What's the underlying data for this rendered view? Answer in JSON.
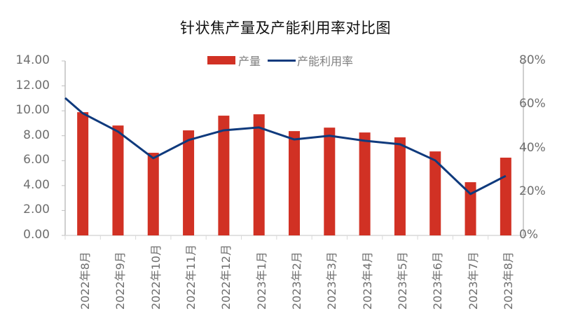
{
  "chart_data": {
    "type": "bar+line",
    "title": "针状焦产量及产能利用率对比图",
    "categories": [
      "2022年8月",
      "2022年9月",
      "2022年10月",
      "2022年11月",
      "2022年12月",
      "2023年1月",
      "2023年2月",
      "2023年3月",
      "2023年4月",
      "2023年5月",
      "2023年6月",
      "2023年7月",
      "2023年8月"
    ],
    "series": [
      {
        "name": "产量",
        "type": "bar",
        "axis": "left",
        "color": "#d13124",
        "values": [
          9.89,
          8.82,
          6.63,
          8.43,
          9.61,
          9.72,
          8.37,
          8.65,
          8.26,
          7.87,
          6.74,
          4.27,
          6.24
        ]
      },
      {
        "name": "产能利用率",
        "type": "line",
        "axis": "right",
        "color": "#0f3a7d",
        "unit": "%",
        "values": [
          56.0,
          47.6,
          35.4,
          43.7,
          48.2,
          49.5,
          44.0,
          45.7,
          43.4,
          41.8,
          34.4,
          19.0,
          27.3
        ],
        "leading_value": 63.0
      }
    ],
    "left_axis": {
      "ylim": [
        0,
        14
      ],
      "ticks": [
        "0.00",
        "2.00",
        "4.00",
        "6.00",
        "8.00",
        "10.00",
        "12.00",
        "14.00"
      ]
    },
    "right_axis": {
      "ylim": [
        0,
        80
      ],
      "ticks": [
        "0%",
        "20%",
        "40%",
        "60%",
        "80%"
      ]
    },
    "legend_position": "top",
    "grid": false
  },
  "legend": {
    "bar_label": "产量",
    "line_label": "产能利用率"
  },
  "title": "针状焦产量及产能利用率对比图"
}
